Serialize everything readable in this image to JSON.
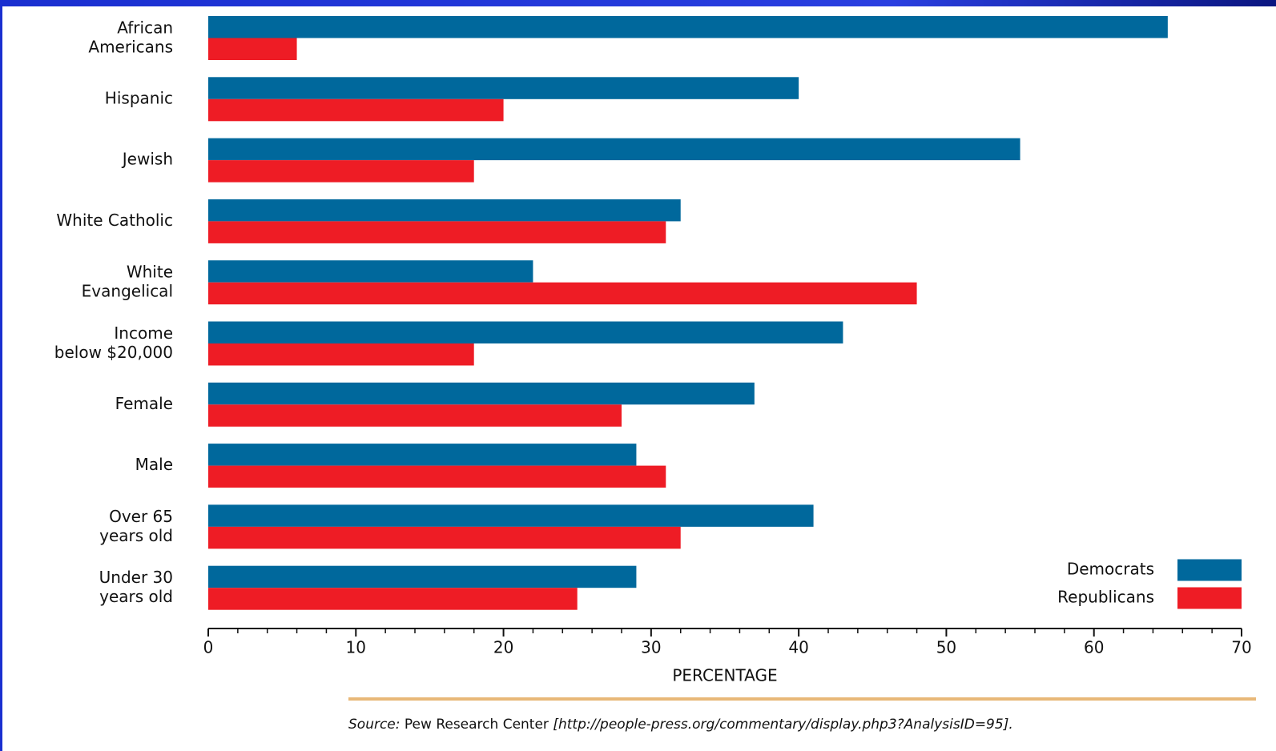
{
  "chart_data": {
    "type": "barh",
    "categories": [
      "African\nAmericans",
      "Hispanic",
      "Jewish",
      "White Catholic",
      "White\nEvangelical",
      "Income\nbelow $20,000",
      "Female",
      "Male",
      "Over 65\nyears old",
      "Under 30\nyears old"
    ],
    "series": [
      {
        "name": "Democrats",
        "color": "#00689c",
        "values": [
          65,
          40,
          55,
          32,
          22,
          43,
          37,
          29,
          41,
          29
        ]
      },
      {
        "name": "Republicans",
        "color": "#ee1c25",
        "values": [
          6,
          20,
          18,
          31,
          48,
          18,
          28,
          31,
          32,
          25
        ]
      }
    ],
    "xlim": [
      0,
      70
    ],
    "xticks": [
      0,
      10,
      20,
      30,
      40,
      50,
      60,
      70
    ],
    "xlabel": "PERCENTAGE",
    "legend": "lower right",
    "source_label": "Source:",
    "source_text": "Pew Research Center",
    "source_url": "[http://people-press.org/commentary/display.php3?AnalysisID=95]."
  }
}
